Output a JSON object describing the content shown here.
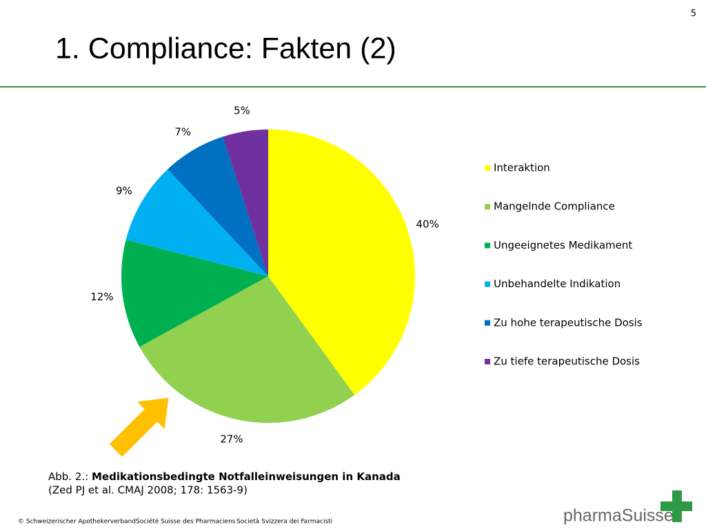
{
  "page_number": "5",
  "slide_title": "1. Compliance: Fakten (2)",
  "chart_data": {
    "type": "pie",
    "categories": [
      "Interaktion",
      "Mangelnde Compliance",
      "Ungeeignetes Medikament",
      "Unbehandelte Indikation",
      "Zu hohe terapeutische Dosis",
      "Zu tiefe terapeutische Dosis"
    ],
    "values": [
      40,
      27,
      12,
      9,
      7,
      5
    ],
    "value_labels": [
      "40%",
      "27%",
      "12%",
      "9%",
      "7%",
      "5%"
    ],
    "colors": [
      "#ffff00",
      "#92d050",
      "#00b050",
      "#00b0f0",
      "#0070c0",
      "#7030a0"
    ],
    "legend": "right"
  },
  "caption": {
    "prefix": "Abb. 2.:",
    "title": "Medikationsbedingte Notfalleinweisungen in Kanada",
    "source": "(Zed PJ et al. CMAJ 2008; 178: 1563-9)"
  },
  "footer": [
    "© Schweizerischer Apothekerverband",
    "Société Suisse des Pharmaciens",
    "Società Svizzera dei Farmacisti"
  ],
  "logo": "pharmaSuisse"
}
